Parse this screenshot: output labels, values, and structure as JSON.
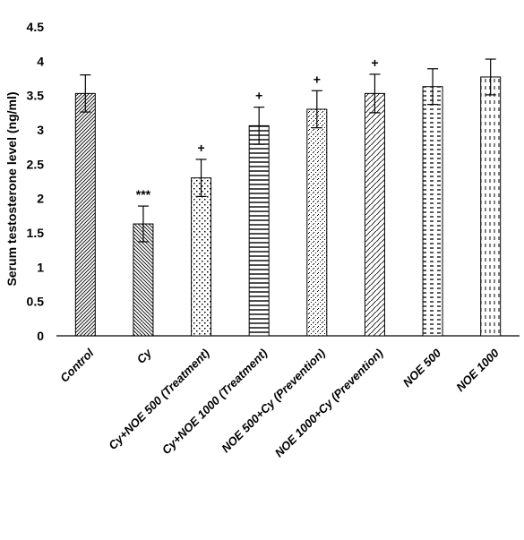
{
  "chart_data": {
    "type": "bar",
    "title": "",
    "xlabel": "",
    "ylabel": "Serum testosterone level (ng/ml)",
    "ylim": [
      0,
      4.5
    ],
    "yticks": [
      "0",
      "0.5",
      "1",
      "1.5",
      "2",
      "2.5",
      "3",
      "3.5",
      "4",
      "4.5"
    ],
    "grid": false,
    "categories": [
      "Control",
      "Cy",
      "Cy+NOE 500 (Treatment)",
      "Cy+NOE 1000 (Treatment)",
      "NOE 500+Cy (Prevention)",
      "NOE 1000+Cy (Prevention)",
      "NOE 500",
      "NOE 1000"
    ],
    "values": [
      3.53,
      1.63,
      2.3,
      3.06,
      3.3,
      3.53,
      3.63,
      3.77
    ],
    "errors": [
      0.27,
      0.26,
      0.27,
      0.27,
      0.27,
      0.28,
      0.26,
      0.26
    ],
    "annotations": [
      "",
      "***",
      "+",
      "+",
      "+",
      "+",
      "",
      ""
    ],
    "patterns": [
      "dense-diagonal-right",
      "dense-diagonal-left",
      "dotted-checker",
      "horizontal-lines",
      "sparse-diagonal-dots",
      "wavy-diagonal",
      "dashed-horizontal",
      "dashed-vertical"
    ],
    "colors": {
      "bar_fill": "#ffffff",
      "pattern": "#000000",
      "axis": "#000000"
    }
  }
}
